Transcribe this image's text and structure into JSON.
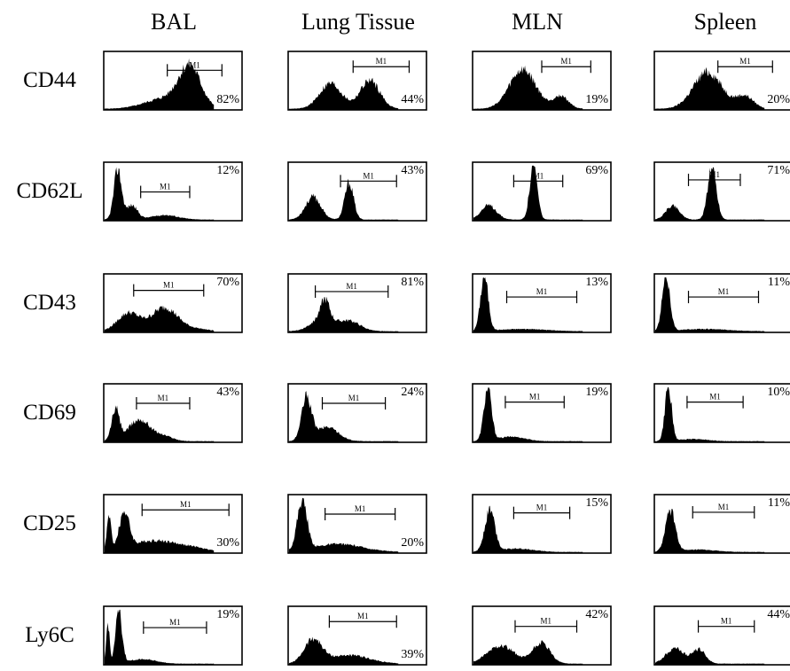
{
  "chart_data": {
    "type": "histogram_grid",
    "columns": [
      "BAL",
      "Lung Tissue",
      "MLN",
      "Spleen"
    ],
    "rows": [
      "CD44",
      "CD62L",
      "CD43",
      "CD69",
      "CD25",
      "Ly6C"
    ],
    "gate_label": "M1",
    "percent_positive": [
      [
        "82%",
        "44%",
        "19%",
        "20%"
      ],
      [
        "12%",
        "43%",
        "69%",
        "71%"
      ],
      [
        "70%",
        "81%",
        "13%",
        "11%"
      ],
      [
        "43%",
        "24%",
        "19%",
        "10%"
      ],
      [
        "30%",
        "20%",
        "15%",
        "11%"
      ],
      [
        "19%",
        "39%",
        "42%",
        "44%"
      ]
    ]
  }
}
